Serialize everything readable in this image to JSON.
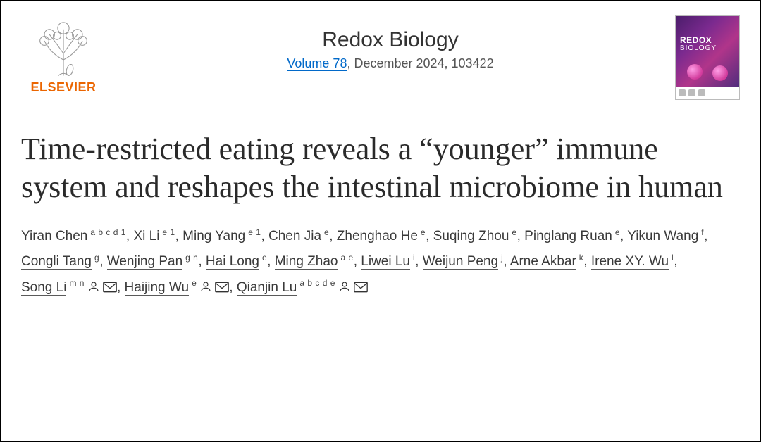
{
  "publisher": {
    "name": "ELSEVIER",
    "name_color": "#eb6500"
  },
  "journal": {
    "title": "Redox Biology",
    "volume_text": "Volume 78",
    "issue_text": ", December 2024, 103422",
    "cover_title": "REDOX",
    "cover_sub": "BIOLOGY"
  },
  "article": {
    "title": "Time-restricted eating reveals a “younger” immune system and reshapes the intestinal microbiome in human"
  },
  "authors": [
    {
      "name": "Yiran Chen",
      "affil": "a b c d 1"
    },
    {
      "name": "Xi Li",
      "affil": "e 1"
    },
    {
      "name": "Ming Yang",
      "affil": "e 1"
    },
    {
      "name": "Chen Jia",
      "affil": "e"
    },
    {
      "name": "Zhenghao He",
      "affil": "e"
    },
    {
      "name": "Suqing Zhou",
      "affil": "e"
    },
    {
      "name": "Pinglang Ruan",
      "affil": "e"
    },
    {
      "name": "Yikun Wang",
      "affil": "f"
    },
    {
      "name": "Congli Tang",
      "affil": "g"
    },
    {
      "name": "Wenjing Pan",
      "affil": "g h"
    },
    {
      "name": "Hai Long",
      "affil": "e"
    },
    {
      "name": "Ming Zhao",
      "affil": "a e"
    },
    {
      "name": "Liwei Lu",
      "affil": "i"
    },
    {
      "name": "Weijun Peng",
      "affil": "j"
    },
    {
      "name": "Arne Akbar",
      "affil": "k"
    },
    {
      "name": "Irene XY. Wu",
      "affil": "l"
    },
    {
      "name": "Song Li",
      "affil": "m n",
      "person": true,
      "mail": true
    },
    {
      "name": "Haijing Wu",
      "affil": "e",
      "person": true,
      "mail": true
    },
    {
      "name": "Qianjin Lu",
      "affil": "a b c d e",
      "person": true,
      "mail": true
    }
  ],
  "colors": {
    "link": "#0169c9",
    "title_text": "#2a2a2a"
  }
}
